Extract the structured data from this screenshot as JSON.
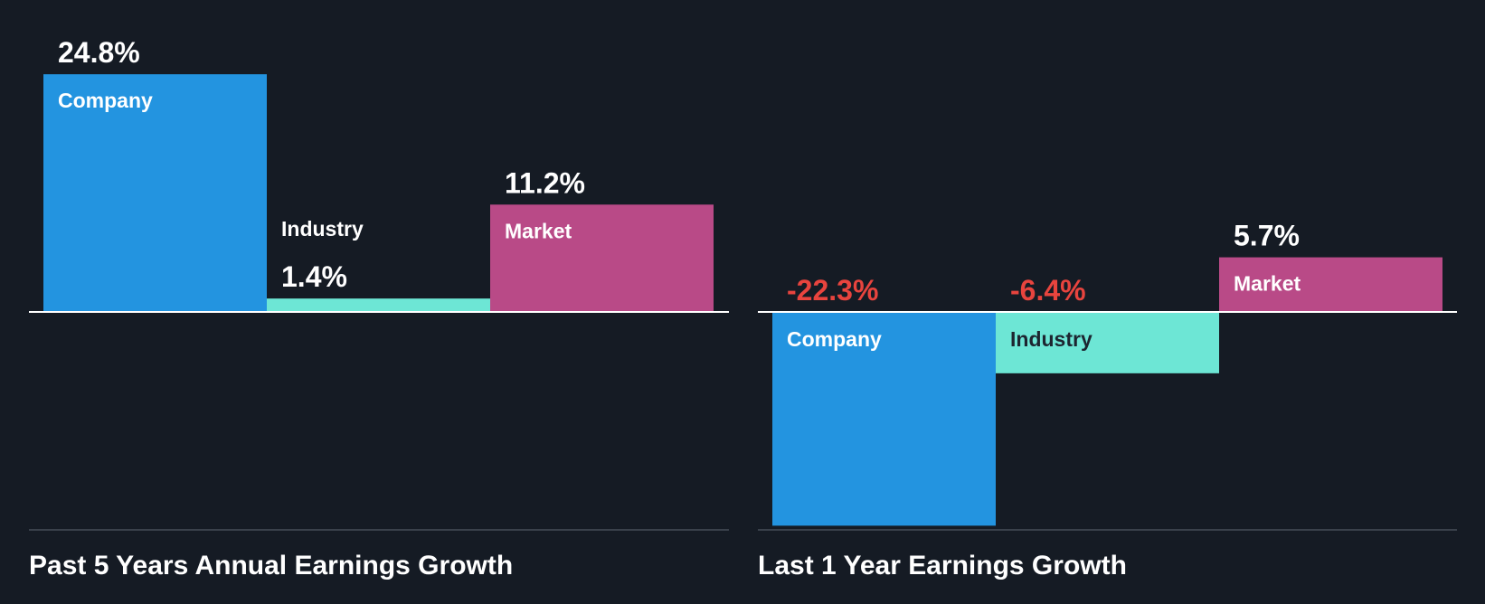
{
  "colors": {
    "background": "#151b24",
    "company": "#2394e0",
    "industry": "#6de6d5",
    "market": "#b94a87",
    "positive_value_text": "#ffffff",
    "negative_value_text": "#e8443e",
    "label_on_dark": "#ffffff",
    "label_on_light": "#1d2530",
    "axis": "#ffffff",
    "baseline": "#3a414b",
    "title": "#ffffff"
  },
  "chart_data": [
    {
      "type": "bar",
      "title": "Past 5 Years Annual Earnings Growth",
      "categories": [
        "Company",
        "Industry",
        "Market"
      ],
      "values": [
        24.8,
        1.4,
        11.2
      ],
      "value_labels": [
        "24.8%",
        "1.4%",
        "11.2%"
      ],
      "ylim": [
        -24.1,
        26.5
      ],
      "grid": false,
      "legend": "none"
    },
    {
      "type": "bar",
      "title": "Last 1 Year Earnings Growth",
      "categories": [
        "Company",
        "Industry",
        "Market"
      ],
      "values": [
        -22.3,
        -6.4,
        5.7
      ],
      "value_labels": [
        "-22.3%",
        "-6.4%",
        "5.7%"
      ],
      "ylim": [
        -22.3,
        21.9
      ],
      "grid": false,
      "legend": "none"
    }
  ]
}
